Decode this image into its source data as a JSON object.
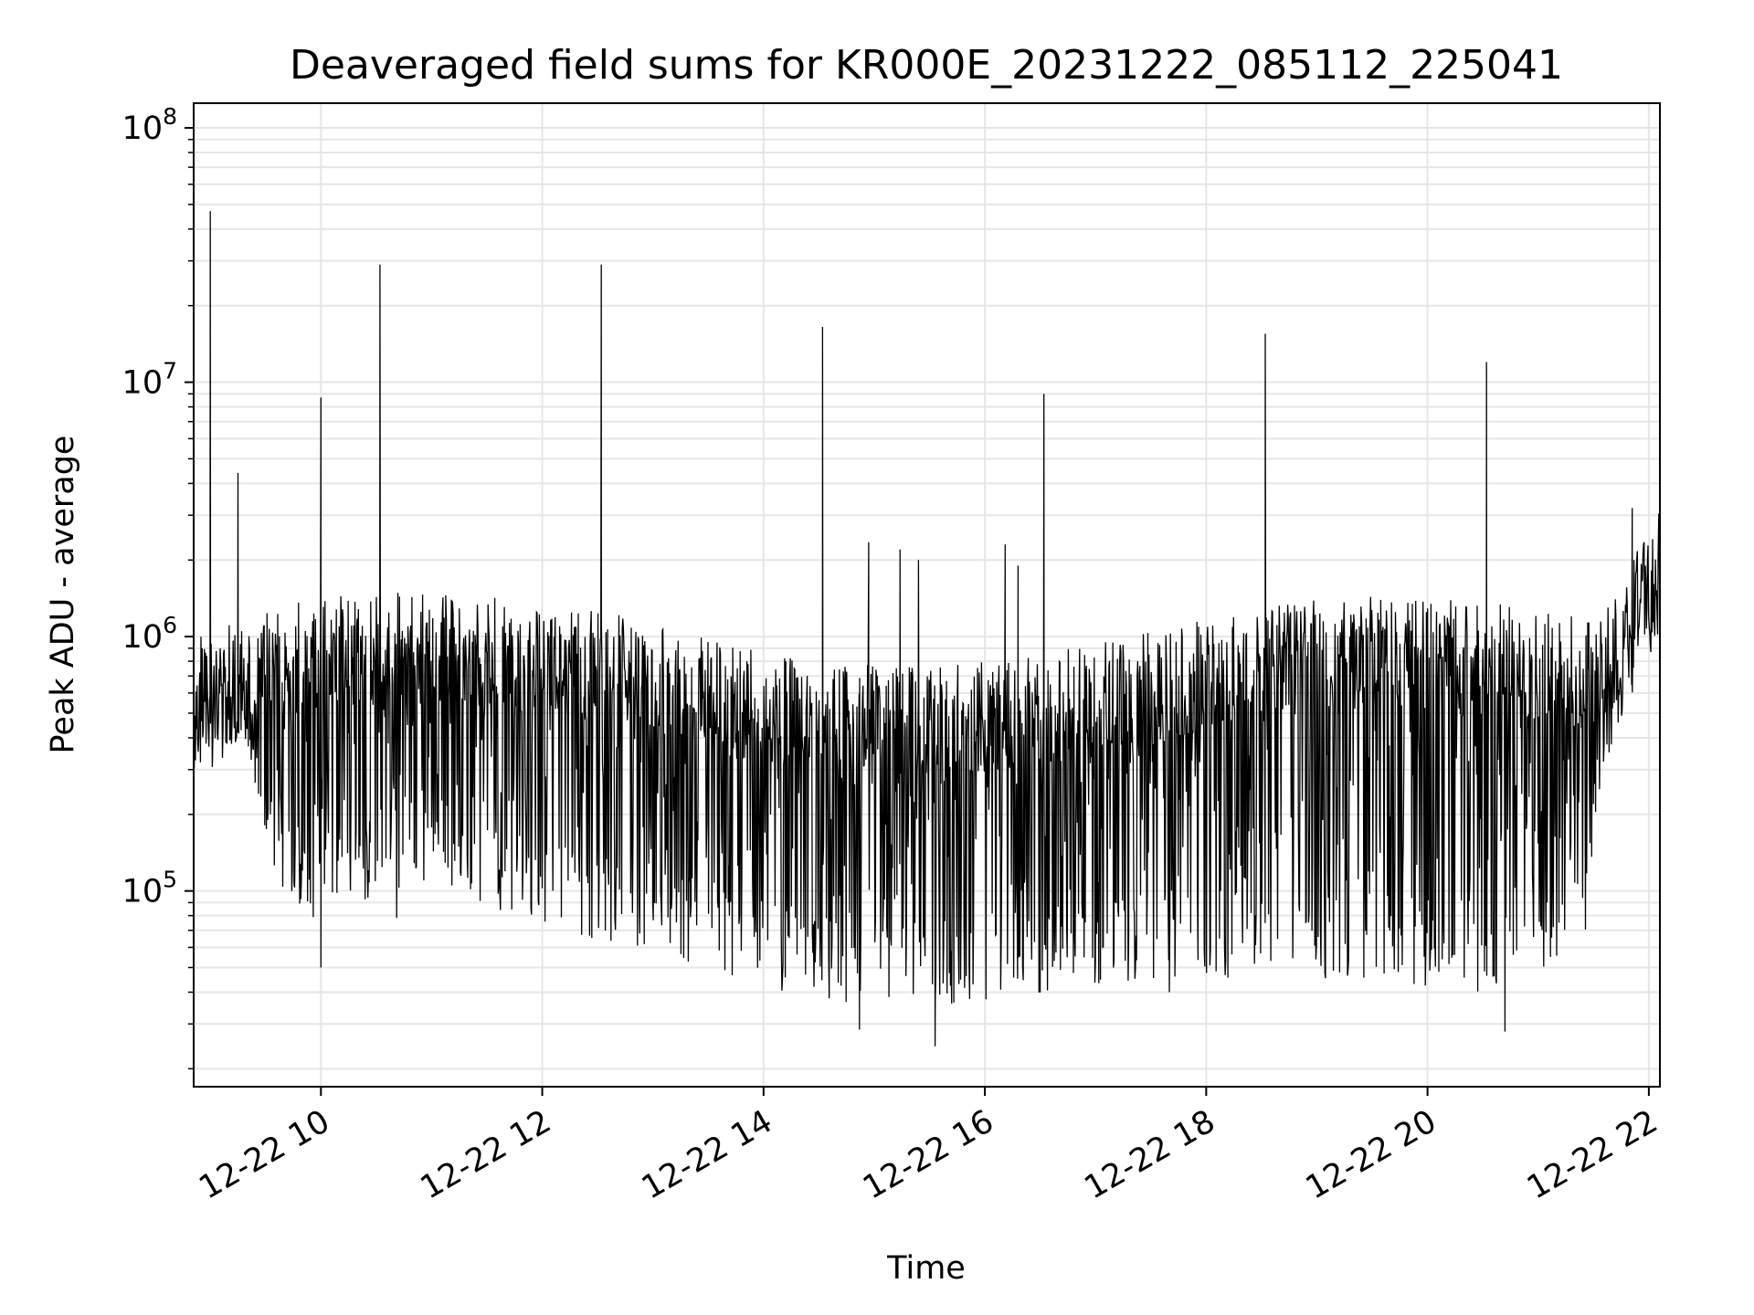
{
  "chart_data": {
    "type": "line",
    "title": "Deaveraged field sums for KR000E_20231222_085112_225041",
    "xlabel": "Time",
    "ylabel": "Peak ADU - average",
    "x_scale": "time",
    "y_scale": "log",
    "xlim": [
      "2023-12-22 08:51",
      "2023-12-22 22:06"
    ],
    "ylim": [
      17000,
      125000000
    ],
    "grid": true,
    "x_ticks": [
      {
        "value": "2023-12-22 10:00",
        "label": "12-22 10"
      },
      {
        "value": "2023-12-22 12:00",
        "label": "12-22 12"
      },
      {
        "value": "2023-12-22 14:00",
        "label": "12-22 14"
      },
      {
        "value": "2023-12-22 16:00",
        "label": "12-22 16"
      },
      {
        "value": "2023-12-22 18:00",
        "label": "12-22 18"
      },
      {
        "value": "2023-12-22 20:00",
        "label": "12-22 20"
      },
      {
        "value": "2023-12-22 22:00",
        "label": "12-22 22"
      }
    ],
    "y_ticks": [
      {
        "value": 100000,
        "base": "10",
        "exp": "5"
      },
      {
        "value": 1000000,
        "base": "10",
        "exp": "6"
      },
      {
        "value": 10000000,
        "base": "10",
        "exp": "7"
      },
      {
        "value": 100000000,
        "base": "10",
        "exp": "8"
      }
    ],
    "series": [
      {
        "color": "#000000",
        "envelope": [
          {
            "time": "2023-12-22 08:51",
            "high": 1000000,
            "low": 300000
          },
          {
            "time": "2023-12-22 09:15",
            "high": 1100000,
            "low": 600000
          },
          {
            "time": "2023-12-22 09:30",
            "high": 1300000,
            "low": 150000
          },
          {
            "time": "2023-12-22 09:45",
            "high": 1450000,
            "low": 80000
          },
          {
            "time": "2023-12-22 10:30",
            "high": 1500000,
            "low": 75000
          },
          {
            "time": "2023-12-22 11:30",
            "high": 1450000,
            "low": 85000
          },
          {
            "time": "2023-12-22 12:30",
            "high": 1300000,
            "low": 60000
          },
          {
            "time": "2023-12-22 13:30",
            "high": 1000000,
            "low": 50000
          },
          {
            "time": "2023-12-22 14:30",
            "high": 800000,
            "low": 36000
          },
          {
            "time": "2023-12-22 15:30",
            "high": 750000,
            "low": 34000
          },
          {
            "time": "2023-12-22 16:30",
            "high": 850000,
            "low": 38000
          },
          {
            "time": "2023-12-22 17:30",
            "high": 1050000,
            "low": 45000
          },
          {
            "time": "2023-12-22 18:30",
            "high": 1350000,
            "low": 45000
          },
          {
            "time": "2023-12-22 19:30",
            "high": 1450000,
            "low": 45000
          },
          {
            "time": "2023-12-22 20:30",
            "high": 1400000,
            "low": 38000
          },
          {
            "time": "2023-12-22 21:25",
            "high": 1200000,
            "low": 50000
          },
          {
            "time": "2023-12-22 21:35",
            "high": 1300000,
            "low": 250000
          },
          {
            "time": "2023-12-22 21:50",
            "high": 1700000,
            "low": 800000
          },
          {
            "time": "2023-12-22 21:55",
            "high": 2300000,
            "low": 1300000
          },
          {
            "time": "2023-12-22 22:06",
            "high": 2500000,
            "low": 1400000
          }
        ],
        "spikes": [
          {
            "time": "2023-12-22 09:00",
            "value": 47000000
          },
          {
            "time": "2023-12-22 09:15",
            "value": 4400000
          },
          {
            "time": "2023-12-22 10:00",
            "value": 8700000
          },
          {
            "time": "2023-12-22 10:32",
            "value": 29000000
          },
          {
            "time": "2023-12-22 12:32",
            "value": 29000000
          },
          {
            "time": "2023-12-22 14:32",
            "value": 16500000
          },
          {
            "time": "2023-12-22 14:57",
            "value": 2350000
          },
          {
            "time": "2023-12-22 15:14",
            "value": 2200000
          },
          {
            "time": "2023-12-22 15:24",
            "value": 2000000
          },
          {
            "time": "2023-12-22 16:11",
            "value": 2300000
          },
          {
            "time": "2023-12-22 16:18",
            "value": 1900000
          },
          {
            "time": "2023-12-22 16:32",
            "value": 9000000
          },
          {
            "time": "2023-12-22 18:32",
            "value": 15500000
          },
          {
            "time": "2023-12-22 20:32",
            "value": 12000000
          },
          {
            "time": "2023-12-22 21:51",
            "value": 3200000
          }
        ],
        "dips": [
          {
            "time": "2023-12-22 10:00",
            "value": 50000
          },
          {
            "time": "2023-12-22 15:33",
            "value": 24500
          },
          {
            "time": "2023-12-22 20:42",
            "value": 28000
          },
          {
            "time": "2023-12-22 14:52",
            "value": 28500
          },
          {
            "time": "2023-12-22 17:40",
            "value": 40000
          }
        ]
      }
    ]
  }
}
